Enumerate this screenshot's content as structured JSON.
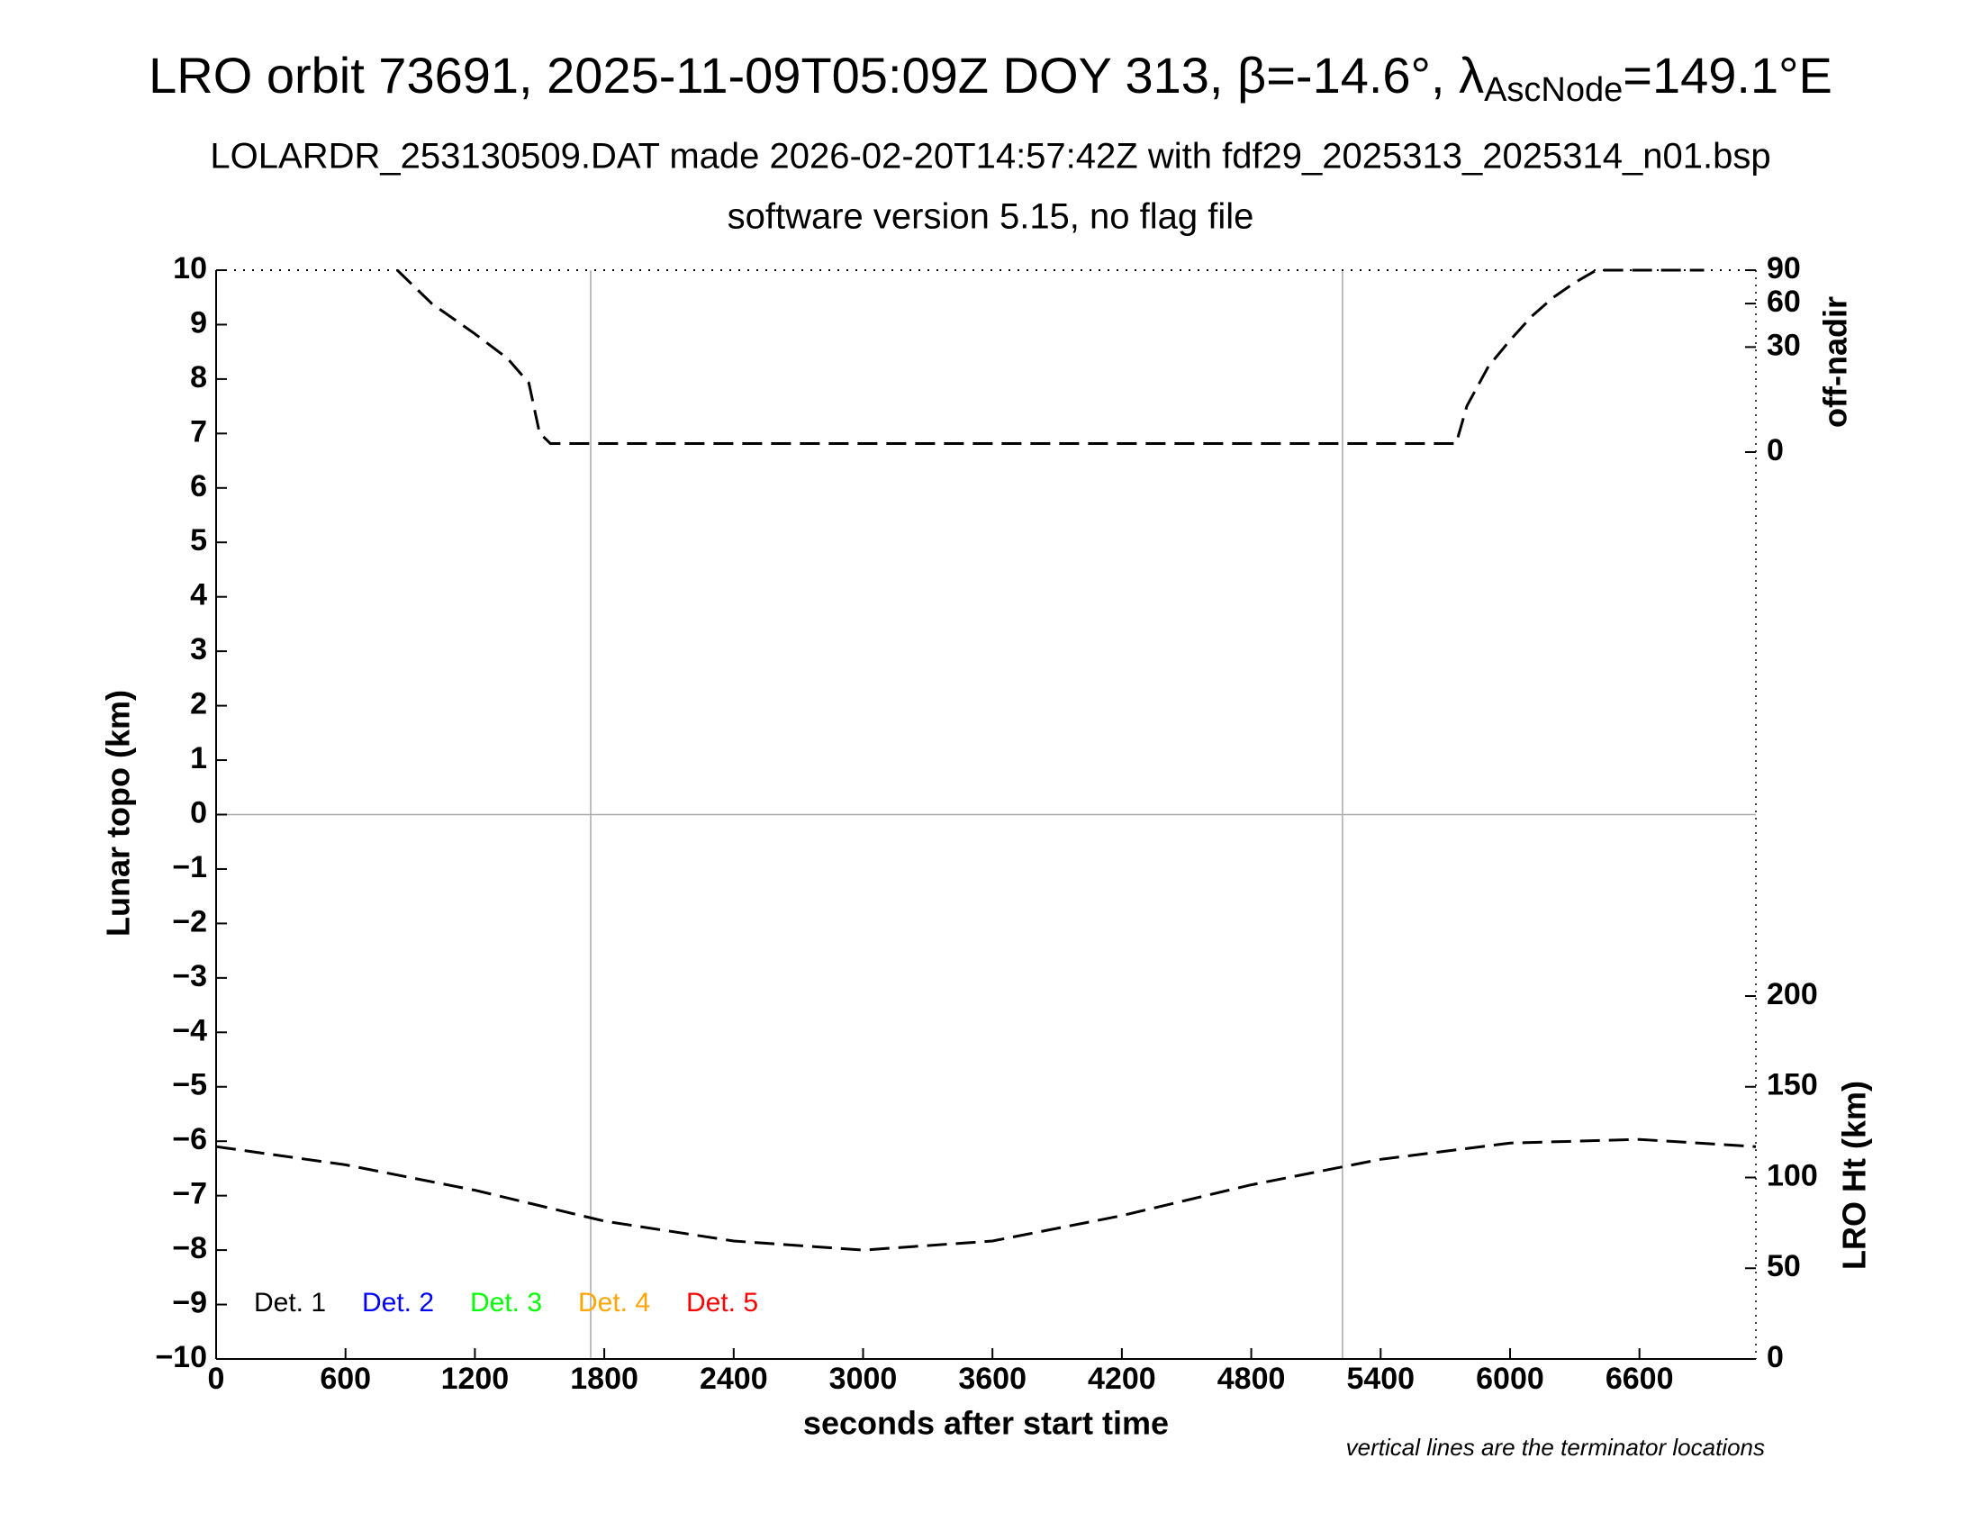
{
  "chart_data": {
    "type": "line",
    "title": "LRO orbit 73691, 2025-11-09T05:09Z DOY 313, β=-14.6°, λ",
    "title_subscript": "AscNode",
    "title_end": "=149.1°E",
    "subtitle": "LOLARDR_253130509.DAT made 2026-02-20T14:57:42Z with fdf29_2025313_2025314_n01.bsp",
    "subtitle2": "software version 5.15, no flag file",
    "x_label": "seconds after start time",
    "y_label": "Lunar topo (km)",
    "y2_label": "off-nadir",
    "y3_label": "LRO Ht (km)",
    "note": "vertical lines are the terminator locations",
    "xlim": [
      0,
      7140
    ],
    "xticks": [
      0,
      600,
      1200,
      1800,
      2400,
      3000,
      3600,
      4200,
      4800,
      5400,
      6000,
      6600
    ],
    "ylim": [
      -10,
      10
    ],
    "yticks": [
      {
        "value": -10,
        "label": "−10"
      },
      {
        "value": -9,
        "label": "−9"
      },
      {
        "value": -8,
        "label": "−8"
      },
      {
        "value": -7,
        "label": "−7"
      },
      {
        "value": -6,
        "label": "−6"
      },
      {
        "value": -5,
        "label": "−5"
      },
      {
        "value": -4,
        "label": "−4"
      },
      {
        "value": -3,
        "label": "−3"
      },
      {
        "value": -2,
        "label": "−2"
      },
      {
        "value": -1,
        "label": "−1"
      },
      0,
      1,
      2,
      3,
      4,
      5,
      6,
      7,
      8,
      9,
      10
    ],
    "y2lim": [
      0,
      90
    ],
    "y2scale": "sqrt",
    "y2ticks": [
      0,
      30,
      60,
      90
    ],
    "y3lim": [
      0,
      600
    ],
    "y3ticks": [
      0,
      50,
      100,
      150,
      200
    ],
    "terminators": [
      1737,
      5223
    ],
    "zero_line": 0,
    "legend": [
      {
        "name": "Det. 1",
        "color": "#000000"
      },
      {
        "name": "Det. 2",
        "color": "#0000ff"
      },
      {
        "name": "Det. 3",
        "color": "#00ff00"
      },
      {
        "name": "Det. 4",
        "color": "#ffa500"
      },
      {
        "name": "Det. 5",
        "color": "#ff0000"
      }
    ],
    "series": [
      {
        "axis": "y2",
        "color": "#000000",
        "x": [
          840,
          1000,
          1200,
          1350,
          1450,
          1500,
          1550,
          1700,
          2000,
          3000,
          4000,
          5000,
          5750,
          5800,
          5900,
          6000,
          6100,
          6200,
          6300,
          6400,
          6900
        ],
        "values": [
          90,
          60,
          38,
          24,
          13,
          1,
          0.2,
          0.2,
          0.2,
          0.2,
          0.2,
          0.2,
          0.2,
          5.8,
          20,
          34,
          50,
          65,
          78,
          90,
          90
        ]
      },
      {
        "axis": "y3",
        "color": "#000000",
        "x": [
          0,
          600,
          1200,
          1800,
          2400,
          3000,
          3600,
          4200,
          4800,
          5400,
          6000,
          6600,
          7140
        ],
        "values": [
          117,
          107,
          93,
          76,
          65,
          60,
          65,
          79,
          96,
          110,
          119,
          121,
          117
        ]
      }
    ]
  }
}
